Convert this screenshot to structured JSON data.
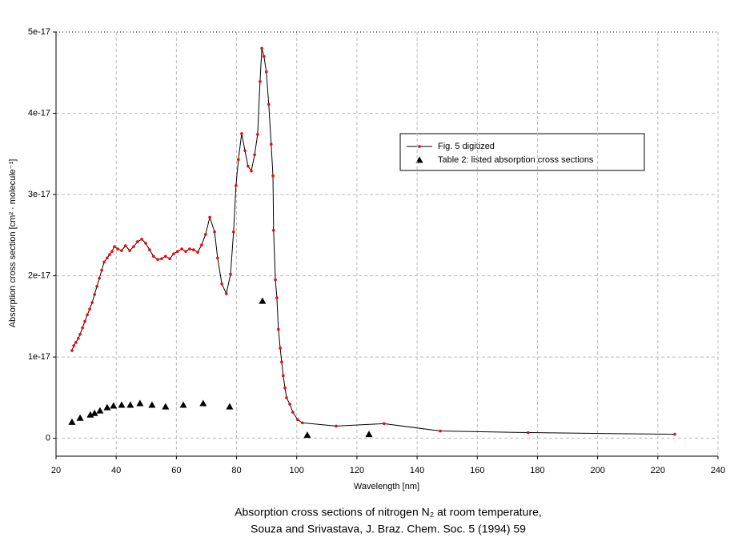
{
  "chart_data": {
    "type": "line",
    "title": [
      "Absorption cross sections of nitrogen N₂ at room temperature,",
      "Souza and Srivastava, J. Braz. Chem. Soc. 5 (1994) 59"
    ],
    "xlabel": "Wavelength [nm]",
    "ylabel": "Absorption cross section [cm² · molecule⁻¹]",
    "xlim": [
      20,
      240
    ],
    "xticks": [
      20,
      40,
      60,
      80,
      100,
      120,
      140,
      160,
      180,
      200,
      220,
      240
    ],
    "ylim": [
      -2.2e-18,
      5e-17
    ],
    "yticks": [
      0,
      1e-17,
      2e-17,
      3e-17,
      4e-17,
      5e-17
    ],
    "grid": true,
    "series": [
      {
        "name": "Fig. 5 digitized",
        "color": "#ff0000",
        "line_color": "#000000",
        "marker": "circle",
        "x": [
          25.3,
          25.9,
          26.6,
          27.4,
          28,
          28.8,
          29.6,
          30.4,
          31.2,
          32,
          32.8,
          33.6,
          34.4,
          35.2,
          36,
          37,
          37.8,
          38.6,
          39.4,
          40.5,
          41.8,
          43.1,
          44.5,
          45.8,
          47.1,
          48.5,
          49.8,
          51.1,
          52.4,
          53.8,
          55.1,
          56.4,
          57.8,
          59.1,
          60.4,
          61.8,
          63.1,
          64.4,
          65.7,
          67.1,
          68.4,
          69.7,
          71.1,
          72.7,
          73.7,
          75.1,
          76.6,
          78,
          79,
          79.8,
          80.6,
          81.7,
          82.8,
          83.8,
          84.9,
          86,
          87,
          87.8,
          88.4,
          89.1,
          89.9,
          90.7,
          91.5,
          92.1,
          92.3,
          92.9,
          93.4,
          93.9,
          94.5,
          95,
          95.5,
          96.1,
          96.6,
          97.7,
          98.7,
          100.3,
          101.9,
          113.1,
          129,
          147.7,
          176.9,
          225.6
        ],
        "values": [
          1.08e-17,
          1.14e-17,
          1.18e-17,
          1.23e-17,
          1.28e-17,
          1.36e-17,
          1.44e-17,
          1.52e-17,
          1.59e-17,
          1.67e-17,
          1.77e-17,
          1.87e-17,
          1.97e-17,
          2.07e-17,
          2.17e-17,
          2.22e-17,
          2.26e-17,
          2.3e-17,
          2.36e-17,
          2.33e-17,
          2.31e-17,
          2.37e-17,
          2.31e-17,
          2.36e-17,
          2.42e-17,
          2.45e-17,
          2.4e-17,
          2.32e-17,
          2.24e-17,
          2.2e-17,
          2.21e-17,
          2.24e-17,
          2.21e-17,
          2.27e-17,
          2.3e-17,
          2.33e-17,
          2.3e-17,
          2.33e-17,
          2.32e-17,
          2.29e-17,
          2.38e-17,
          2.51e-17,
          2.72e-17,
          2.54e-17,
          2.22e-17,
          1.9e-17,
          1.78e-17,
          2.02e-17,
          2.54e-17,
          3.11e-17,
          3.43e-17,
          3.75e-17,
          3.54e-17,
          3.35e-17,
          3.29e-17,
          3.49e-17,
          3.74e-17,
          4.39e-17,
          4.8e-17,
          4.7e-17,
          4.51e-17,
          4.11e-17,
          3.62e-17,
          3.23e-17,
          2.56e-17,
          1.95e-17,
          1.73e-17,
          1.34e-17,
          1.11e-17,
          9.4e-18,
          7.7e-18,
          6.2e-18,
          5e-18,
          4.2e-18,
          3.2e-18,
          2.3e-18,
          1.9e-18,
          1.5e-18,
          1.8e-18,
          9e-19,
          7e-19,
          5e-19
        ]
      },
      {
        "name": "Table 2: listed absorption cross sections",
        "color": "#000000",
        "marker": "triangle",
        "x": [
          25.3,
          28,
          31.4,
          32.8,
          34.6,
          37,
          39.1,
          41.8,
          44.7,
          47.9,
          51.9,
          56.4,
          62.3,
          68.9,
          77.7,
          88.6,
          103.5,
          124
        ],
        "values": [
          2e-18,
          2.5e-18,
          2.9e-18,
          3.1e-18,
          3.4e-18,
          3.8e-18,
          4e-18,
          4.1e-18,
          4.1e-18,
          4.3e-18,
          4.1e-18,
          3.9e-18,
          4.1e-18,
          4.3e-18,
          3.9e-18,
          1.69e-17,
          4e-19,
          5e-19
        ]
      }
    ]
  }
}
